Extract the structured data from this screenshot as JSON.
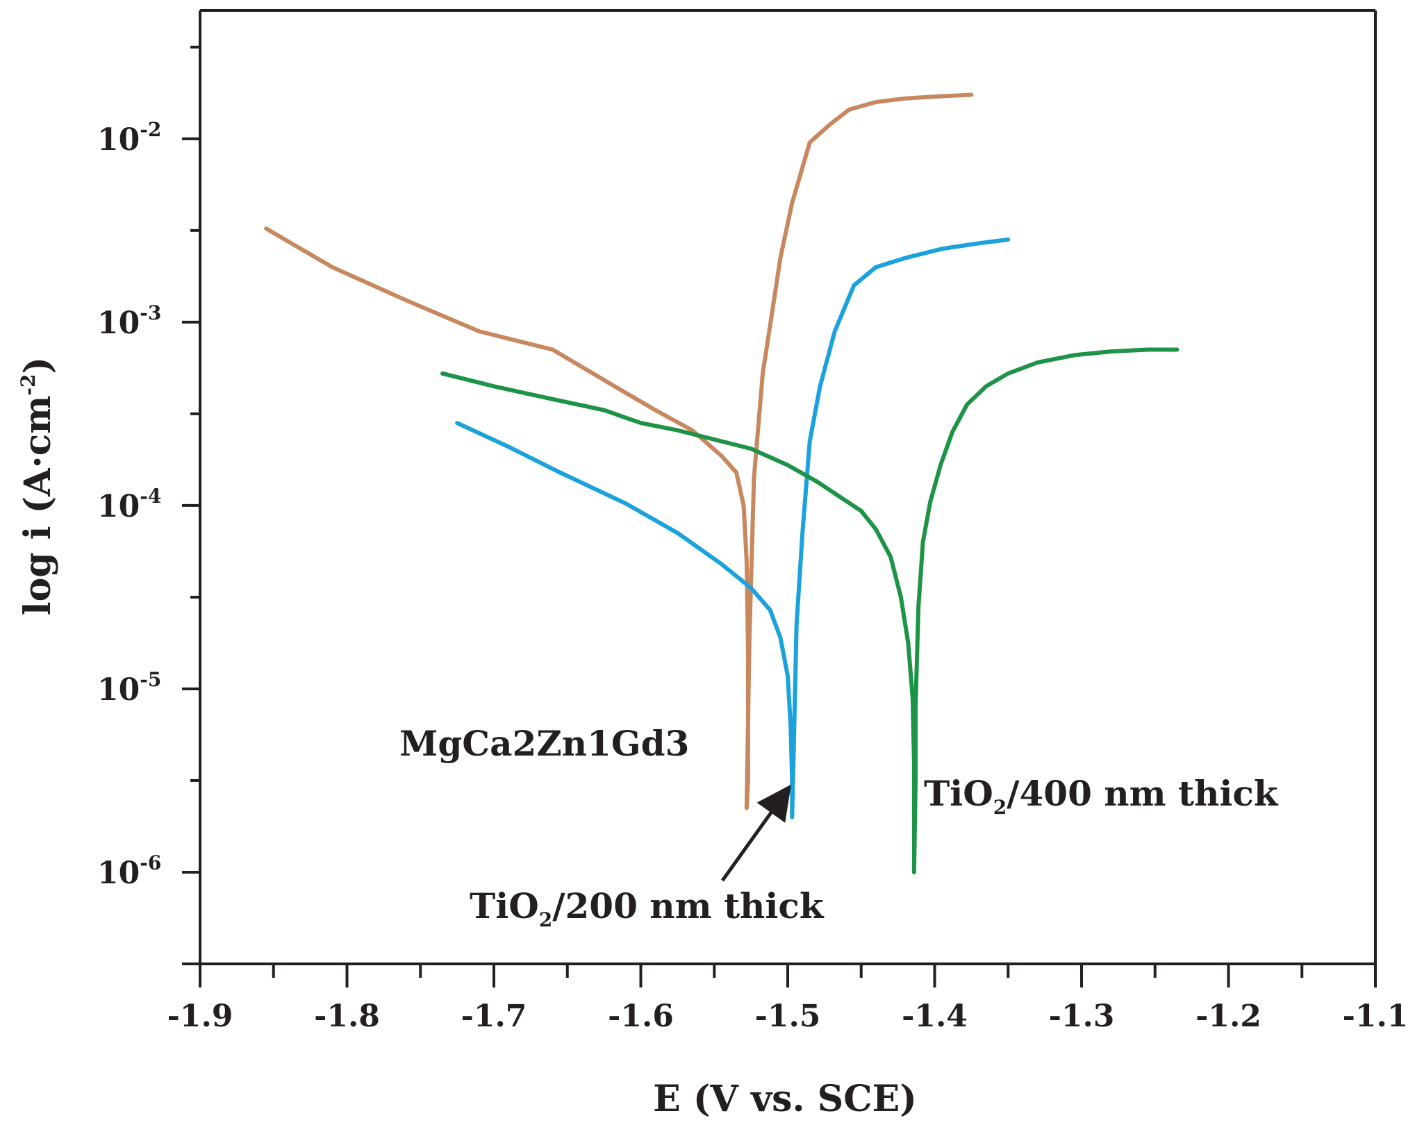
{
  "chart_data": {
    "type": "line",
    "title": "",
    "xlabel": "E (V vs. SCE)",
    "ylabel": "log i (A·cm",
    "ylabel_exponent": "-2",
    "ylabel_close": ")",
    "xlim": [
      -1.9,
      -1.1
    ],
    "ylim_log10": [
      -6.5,
      -1.3
    ],
    "x_ticks": [
      -1.9,
      -1.8,
      -1.7,
      -1.6,
      -1.5,
      -1.4,
      -1.3,
      -1.2,
      -1.1
    ],
    "x_tick_labels": [
      "-1.9",
      "-1.8",
      "-1.7",
      "-1.6",
      "-1.5",
      "-1.4",
      "-1.3",
      "-1.2",
      "-1.1"
    ],
    "y_ticks_log10": [
      -6,
      -5,
      -4,
      -3,
      -2
    ],
    "y_tick_base": "10",
    "y_tick_exponents": [
      "-6",
      "-5",
      "-4",
      "-3",
      "-2"
    ],
    "grid": false,
    "series": [
      {
        "name": "MgCa2Zn1Gd3",
        "color": "#c8885f",
        "x": [
          -1.855,
          -1.81,
          -1.76,
          -1.71,
          -1.66,
          -1.62,
          -1.59,
          -1.565,
          -1.545,
          -1.535,
          -1.53,
          -1.528,
          -1.527,
          -1.527,
          -1.528,
          -1.526,
          -1.523,
          -1.517,
          -1.512,
          -1.505,
          -1.497,
          -1.485,
          -1.471,
          -1.458,
          -1.44,
          -1.42,
          -1.4,
          -1.375
        ],
        "y": [
          -2.49,
          -2.7,
          -2.88,
          -3.05,
          -3.15,
          -3.34,
          -3.48,
          -3.59,
          -3.73,
          -3.82,
          -4.0,
          -4.3,
          -4.8,
          -5.5,
          -5.65,
          -4.7,
          -3.85,
          -3.28,
          -3.02,
          -2.65,
          -2.35,
          -2.02,
          -1.92,
          -1.84,
          -1.8,
          -1.78,
          -1.77,
          -1.76
        ]
      },
      {
        "name": "TiO₂/200 nm thick",
        "color": "#1aa2dc",
        "x": [
          -1.725,
          -1.69,
          -1.655,
          -1.61,
          -1.575,
          -1.545,
          -1.525,
          -1.512,
          -1.505,
          -1.5,
          -1.498,
          -1.497,
          -1.497,
          -1.496,
          -1.494,
          -1.49,
          -1.485,
          -1.478,
          -1.468,
          -1.455,
          -1.44,
          -1.42,
          -1.395,
          -1.37,
          -1.35
        ],
        "y": [
          -3.55,
          -3.68,
          -3.82,
          -3.99,
          -4.15,
          -4.32,
          -4.45,
          -4.57,
          -4.72,
          -4.93,
          -5.2,
          -5.5,
          -5.7,
          -5.35,
          -4.65,
          -4.15,
          -3.65,
          -3.35,
          -3.05,
          -2.8,
          -2.7,
          -2.65,
          -2.6,
          -2.57,
          -2.55
        ]
      },
      {
        "name": "TiO₂/400 nm thick",
        "color": "#1d9348",
        "x": [
          -1.735,
          -1.7,
          -1.66,
          -1.625,
          -1.6,
          -1.575,
          -1.55,
          -1.525,
          -1.5,
          -1.48,
          -1.465,
          -1.45,
          -1.44,
          -1.43,
          -1.423,
          -1.418,
          -1.415,
          -1.414,
          -1.414,
          -1.413,
          -1.413,
          -1.411,
          -1.408,
          -1.403,
          -1.396,
          -1.388,
          -1.378,
          -1.365,
          -1.35,
          -1.33,
          -1.305,
          -1.28,
          -1.255,
          -1.235
        ],
        "y": [
          -3.28,
          -3.35,
          -3.42,
          -3.48,
          -3.55,
          -3.59,
          -3.64,
          -3.69,
          -3.78,
          -3.87,
          -3.95,
          -4.03,
          -4.13,
          -4.28,
          -4.5,
          -4.75,
          -5.05,
          -5.4,
          -6.0,
          -5.5,
          -5.1,
          -4.55,
          -4.2,
          -3.98,
          -3.78,
          -3.6,
          -3.45,
          -3.35,
          -3.28,
          -3.22,
          -3.18,
          -3.16,
          -3.15,
          -3.15
        ]
      }
    ],
    "annotations": [
      {
        "text": "MgCa2Zn1Gd3",
        "series": "MgCa2Zn1Gd3"
      },
      {
        "text_main": "TiO",
        "text_sub": "2",
        "text_rest": "/200 nm thick",
        "series": "TiO₂/200 nm thick",
        "arrow_to": {
          "x": -1.498,
          "y": -5.53
        }
      },
      {
        "text_main": "TiO",
        "text_sub": "2",
        "text_rest": "/400 nm thick",
        "series": "TiO₂/400 nm thick"
      }
    ]
  }
}
